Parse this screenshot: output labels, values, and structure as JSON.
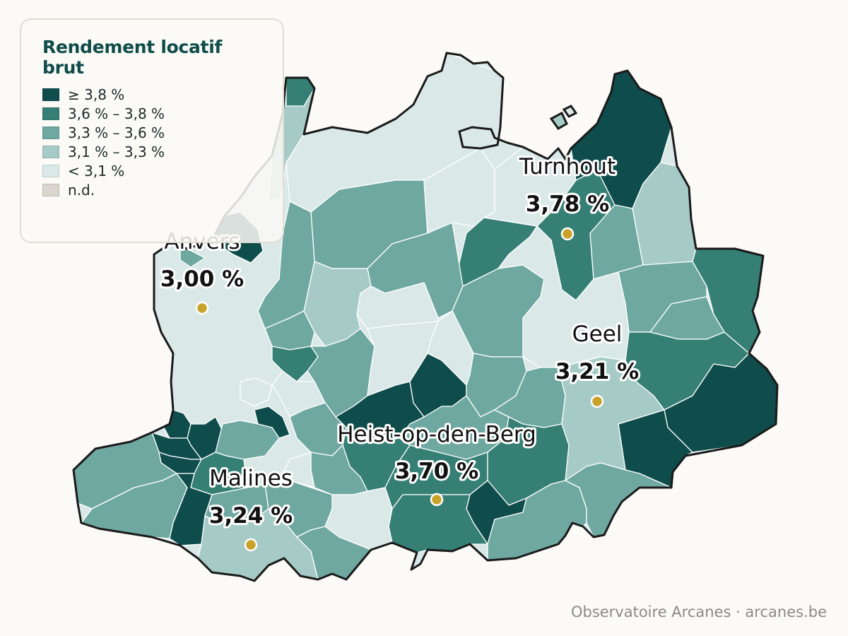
{
  "legend": {
    "title": "Rendement locatif brut",
    "items": [
      {
        "label": "≥ 3,8 %",
        "color": "#0f4c4c"
      },
      {
        "label": "3,6 % – 3,8 %",
        "color": "#357f75"
      },
      {
        "label": "3,3 % – 3,6 %",
        "color": "#6ea8a0"
      },
      {
        "label": "3,1 % – 3,3 %",
        "color": "#a6cbc6"
      },
      {
        "label": "< 3,1 %",
        "color": "#dae9e8"
      },
      {
        "label": "n.d.",
        "color": "#dad6ce"
      }
    ]
  },
  "cities": [
    {
      "name": "Turnhout",
      "value": "3,78 %",
      "yield": 3.78
    },
    {
      "name": "Anvers",
      "value": "3,00 %",
      "yield": 3.0
    },
    {
      "name": "Geel",
      "value": "3,21 %",
      "yield": 3.21
    },
    {
      "name": "Heist-op-den-Berg",
      "value": "3,70 %",
      "yield": 3.7
    },
    {
      "name": "Malines",
      "value": "3,24 %",
      "yield": 3.24
    }
  ],
  "source": "Observatoire Arcanes · arcanes.be",
  "colors": {
    "marker": "#c9a22a",
    "border": "#1a1a1a",
    "internal": "#ffffff"
  }
}
